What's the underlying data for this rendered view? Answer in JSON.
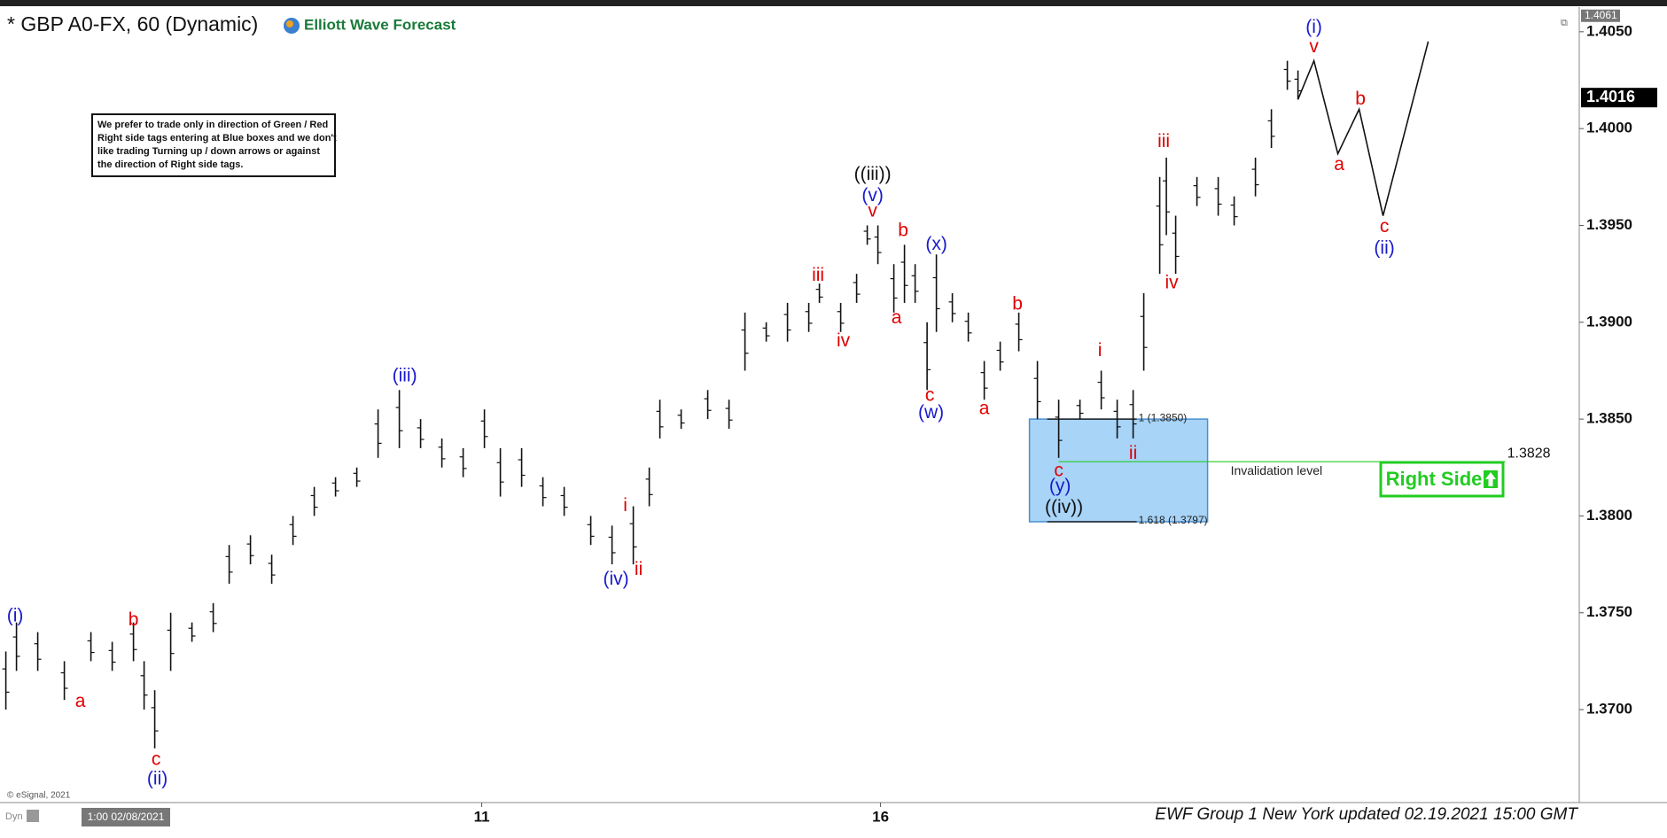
{
  "chart_data": {
    "type": "hilo",
    "title": "* GBP A0-FX, 60 (Dynamic)",
    "brand": "Elliott Wave Forecast",
    "note_lines": [
      "We prefer to trade only in direction of Green / Red",
      "Right side tags entering at Blue boxes and we don't",
      "like trading Turning up / down arrows or against",
      "the direction of Right side tags."
    ],
    "copyright": "© eSignal, 2021",
    "mode": "Dyn",
    "cursor_label": "1:00 02/08/2021",
    "footer": "EWF Group 1 New York updated 02.19.2021 15:00 GMT",
    "xlim": [
      -0.624,
      11.256
    ],
    "xticks": [
      {
        "value": 3,
        "label": "11"
      },
      {
        "value": 6,
        "label": "16"
      }
    ],
    "ylim": [
      1.3652,
      1.4062
    ],
    "yticks": [
      {
        "value": 1.37,
        "label": "1.3700"
      },
      {
        "value": 1.375,
        "label": "1.3750"
      },
      {
        "value": 1.38,
        "label": "1.3800"
      },
      {
        "value": 1.385,
        "label": "1.3850"
      },
      {
        "value": 1.39,
        "label": "1.3900"
      },
      {
        "value": 1.395,
        "label": "1.3950"
      },
      {
        "value": 1.4,
        "label": "1.4000"
      },
      {
        "value": 1.405,
        "label": "1.4050"
      }
    ],
    "color": "#111111",
    "x": [
      -0.58,
      -0.5,
      -0.34,
      -0.14,
      0.06,
      0.22,
      0.38,
      0.46,
      0.54,
      0.66,
      0.82,
      0.98,
      1.1,
      1.26,
      1.42,
      1.58,
      1.74,
      1.9,
      2.06,
      2.22,
      2.38,
      2.54,
      2.7,
      2.86,
      3.02,
      3.14,
      3.3,
      3.46,
      3.62,
      3.82,
      3.98,
      4.14,
      4.26,
      4.34,
      4.5,
      4.7,
      4.86,
      4.98,
      5.14,
      5.3,
      5.46,
      5.54,
      5.7,
      5.82,
      5.9,
      5.98,
      6.1,
      6.18,
      6.26,
      6.35,
      6.42,
      6.54,
      6.66,
      6.78,
      6.9,
      7.04,
      7.18,
      7.34,
      7.5,
      7.66,
      7.78,
      7.9,
      7.98,
      8.1,
      8.15,
      8.22,
      8.38,
      8.54,
      8.66,
      8.82,
      8.94,
      9.06,
      9.14
    ],
    "high": [
      1.373,
      1.3745,
      1.374,
      1.3725,
      1.374,
      1.3735,
      1.3745,
      1.3725,
      1.371,
      1.375,
      1.3745,
      1.3755,
      1.3785,
      1.379,
      1.378,
      1.38,
      1.3815,
      1.382,
      1.3825,
      1.3855,
      1.3865,
      1.385,
      1.384,
      1.3835,
      1.3855,
      1.3835,
      1.3835,
      1.382,
      1.3815,
      1.38,
      1.3795,
      1.3805,
      1.3825,
      1.386,
      1.3855,
      1.3865,
      1.386,
      1.3905,
      1.39,
      1.391,
      1.391,
      1.392,
      1.391,
      1.3925,
      1.395,
      1.395,
      1.393,
      1.394,
      1.393,
      1.39,
      1.3935,
      1.3915,
      1.3905,
      1.388,
      1.389,
      1.3905,
      1.388,
      1.386,
      1.386,
      1.3875,
      1.386,
      1.3865,
      1.3915,
      1.3975,
      1.3985,
      1.3955,
      1.3975,
      1.3975,
      1.3965,
      1.3985,
      1.401,
      1.4035,
      1.403
    ],
    "low": [
      1.37,
      1.372,
      1.372,
      1.3705,
      1.3725,
      1.372,
      1.3725,
      1.37,
      1.368,
      1.372,
      1.3735,
      1.374,
      1.3765,
      1.3775,
      1.3765,
      1.3785,
      1.38,
      1.381,
      1.3815,
      1.383,
      1.3835,
      1.3835,
      1.3825,
      1.382,
      1.3835,
      1.381,
      1.3815,
      1.3805,
      1.38,
      1.3785,
      1.3775,
      1.3775,
      1.3805,
      1.384,
      1.3845,
      1.385,
      1.3845,
      1.3875,
      1.389,
      1.389,
      1.3895,
      1.391,
      1.3895,
      1.391,
      1.394,
      1.393,
      1.3905,
      1.391,
      1.391,
      1.3865,
      1.3895,
      1.39,
      1.389,
      1.386,
      1.3875,
      1.3885,
      1.385,
      1.383,
      1.385,
      1.3855,
      1.384,
      1.384,
      1.3875,
      1.3925,
      1.3945,
      1.3925,
      1.396,
      1.3955,
      1.395,
      1.3965,
      1.399,
      1.402,
      1.4015
    ],
    "projection": {
      "x": [
        9.14,
        9.26,
        9.44,
        9.6,
        9.78,
        10.12
      ],
      "values": [
        1.4015,
        1.4035,
        1.3987,
        1.401,
        1.3955,
        1.4045
      ]
    },
    "box": {
      "x": [
        7.12,
        8.46
      ],
      "levels": [
        {
          "value": 1.385,
          "label": "1 (1.3850)"
        },
        {
          "value": 1.3797,
          "label": "1.618 (1.3797)"
        }
      ]
    },
    "invalidation": {
      "value": 1.3828,
      "label": "1.3828",
      "text": "Invalidation level",
      "x": [
        7.34,
        10.7
      ]
    },
    "right_side": "Right Side",
    "current_price": {
      "value": 1.4016,
      "label": "1.4016"
    },
    "top_price": {
      "value": 1.4061,
      "label": "1.4061"
    },
    "waves": [
      {
        "text": "(i)",
        "color": "#1a1acc",
        "x": -0.51,
        "y": 1.3748
      },
      {
        "text": "a",
        "color": "#e00000",
        "x": -0.02,
        "y": 1.3704
      },
      {
        "text": "b",
        "color": "#e00000",
        "x": 0.38,
        "y": 1.3746
      },
      {
        "text": "c",
        "color": "#e00000",
        "x": 0.55,
        "y": 1.3674
      },
      {
        "text": "(ii)",
        "color": "#1a1acc",
        "x": 0.56,
        "y": 1.3664
      },
      {
        "text": "(iii)",
        "color": "#1a1acc",
        "x": 2.42,
        "y": 1.3872
      },
      {
        "text": "i",
        "color": "#e00000",
        "x": 4.08,
        "y": 1.3805
      },
      {
        "text": "ii",
        "color": "#e00000",
        "x": 4.18,
        "y": 1.3772
      },
      {
        "text": "(iv)",
        "color": "#1a1acc",
        "x": 4.01,
        "y": 1.3767
      },
      {
        "text": "iii",
        "color": "#e00000",
        "x": 5.53,
        "y": 1.3924
      },
      {
        "text": "iv",
        "color": "#e00000",
        "x": 5.72,
        "y": 1.389
      },
      {
        "text": "v",
        "color": "#e00000",
        "x": 5.94,
        "y": 1.3957
      },
      {
        "text": "(v)",
        "color": "#1a1acc",
        "x": 5.94,
        "y": 1.3965
      },
      {
        "text": "((iii))",
        "color": "#111111",
        "x": 5.94,
        "y": 1.3976
      },
      {
        "text": "b",
        "color": "#e00000",
        "x": 6.17,
        "y": 1.3947
      },
      {
        "text": "a",
        "color": "#e00000",
        "x": 6.12,
        "y": 1.3902
      },
      {
        "text": "(x)",
        "color": "#1a1acc",
        "x": 6.42,
        "y": 1.394
      },
      {
        "text": "c",
        "color": "#e00000",
        "x": 6.37,
        "y": 1.3862
      },
      {
        "text": "(w)",
        "color": "#1a1acc",
        "x": 6.38,
        "y": 1.3853
      },
      {
        "text": "a",
        "color": "#e00000",
        "x": 6.78,
        "y": 1.3855
      },
      {
        "text": "b",
        "color": "#e00000",
        "x": 7.03,
        "y": 1.3909
      },
      {
        "text": "c",
        "color": "#e00000",
        "x": 7.34,
        "y": 1.3823
      },
      {
        "text": "(y)",
        "color": "#1a1acc",
        "x": 7.35,
        "y": 1.3815
      },
      {
        "text": "((iv))",
        "color": "#111111",
        "x": 7.38,
        "y": 1.3804
      },
      {
        "text": "i",
        "color": "#e00000",
        "x": 7.65,
        "y": 1.3885
      },
      {
        "text": "ii",
        "color": "#e00000",
        "x": 7.9,
        "y": 1.3832
      },
      {
        "text": "iii",
        "color": "#e00000",
        "x": 8.13,
        "y": 1.3993
      },
      {
        "text": "iv",
        "color": "#e00000",
        "x": 8.19,
        "y": 1.392
      },
      {
        "text": "(i)",
        "color": "#1a1acc",
        "x": 9.26,
        "y": 1.4052
      },
      {
        "text": "v",
        "color": "#e00000",
        "x": 9.26,
        "y": 1.4042
      },
      {
        "text": "a",
        "color": "#e00000",
        "x": 9.45,
        "y": 1.3981
      },
      {
        "text": "b",
        "color": "#e00000",
        "x": 9.61,
        "y": 1.4015
      },
      {
        "text": "c",
        "color": "#e00000",
        "x": 9.79,
        "y": 1.3949
      },
      {
        "text": "(ii)",
        "color": "#1a1acc",
        "x": 9.79,
        "y": 1.3938
      }
    ]
  }
}
